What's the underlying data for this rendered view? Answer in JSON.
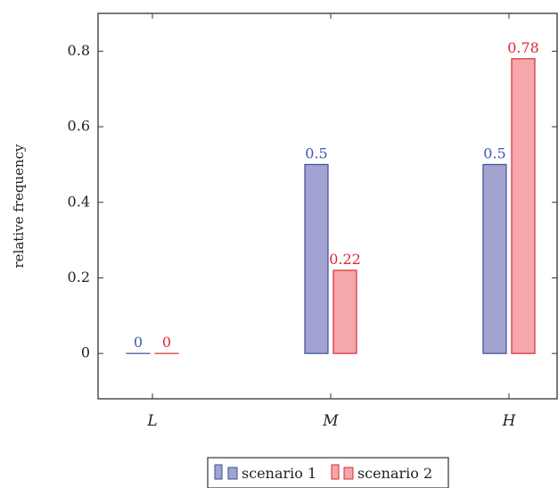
{
  "chart_data": {
    "type": "bar",
    "categories": [
      "L",
      "M",
      "H"
    ],
    "series": [
      {
        "name": "scenario 1",
        "values": [
          0,
          0.5,
          0.5
        ],
        "labels": [
          "0",
          "0.5",
          "0.5"
        ],
        "fill": "#a3a3d1",
        "stroke": "#3b4c9b",
        "label_color": "#3b5bab"
      },
      {
        "name": "scenario 2",
        "values": [
          0,
          0.22,
          0.78
        ],
        "labels": [
          "0",
          "0.22",
          "0.78"
        ],
        "fill": "#f6a7aa",
        "stroke": "#d42d33",
        "label_color": "#e5262d"
      }
    ],
    "yticks": [
      "0",
      "0.2",
      "0.4",
      "0.6",
      "0.8"
    ],
    "ytick_values": [
      0,
      0.2,
      0.4,
      0.6,
      0.8
    ],
    "ylim": [
      -0.12,
      0.9
    ],
    "ylabel": "relative frequency",
    "xlabel": "",
    "title": "",
    "grid": false,
    "legend_position": "bottom-center"
  }
}
